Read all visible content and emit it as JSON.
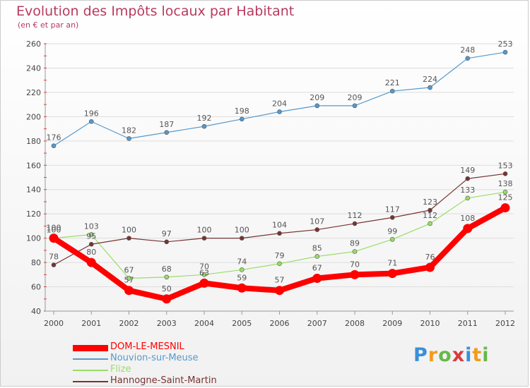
{
  "chart_data": {
    "type": "line",
    "title": "Evolution des Impôts locaux par Habitant",
    "subtitle": "(en € et par an)",
    "xlabel": "",
    "ylabel": "",
    "x": [
      "2000",
      "2001",
      "2002",
      "2003",
      "2004",
      "2005",
      "2006",
      "2007",
      "2008",
      "2009",
      "2010",
      "2011",
      "2012"
    ],
    "ylim": [
      40,
      260
    ],
    "yticks": [
      40,
      60,
      80,
      100,
      120,
      140,
      160,
      180,
      200,
      220,
      240,
      260
    ],
    "grid": "horizontal",
    "legend_position": "bottom-left",
    "series": [
      {
        "name": "DOM-LE-MESNIL",
        "color": "#ff0000",
        "emphasis": true,
        "values": [
          100,
          80,
          57,
          50,
          63,
          59,
          57,
          67,
          70,
          71,
          76,
          108,
          125
        ]
      },
      {
        "name": "Nouvion-sur-Meuse",
        "color": "#5599cc",
        "values": [
          176,
          196,
          182,
          187,
          192,
          198,
          204,
          209,
          209,
          221,
          224,
          248,
          253
        ]
      },
      {
        "name": "Flize",
        "color": "#99dd66",
        "values": [
          100,
          103,
          67,
          68,
          70,
          74,
          79,
          85,
          89,
          99,
          112,
          133,
          138
        ]
      },
      {
        "name": "Hannogne-Saint-Martin",
        "color": "#773333",
        "values": [
          78,
          95,
          100,
          97,
          100,
          100,
          104,
          107,
          112,
          117,
          123,
          149,
          153
        ]
      }
    ]
  },
  "logo": {
    "letters": [
      "P",
      "r",
      "o",
      "x",
      "i",
      "t",
      "i"
    ],
    "colors": [
      "#3a8fd8",
      "#f29b1f",
      "#67b84a",
      "#d93a3a",
      "#3a8fd8",
      "#f29b1f",
      "#67b84a"
    ]
  }
}
